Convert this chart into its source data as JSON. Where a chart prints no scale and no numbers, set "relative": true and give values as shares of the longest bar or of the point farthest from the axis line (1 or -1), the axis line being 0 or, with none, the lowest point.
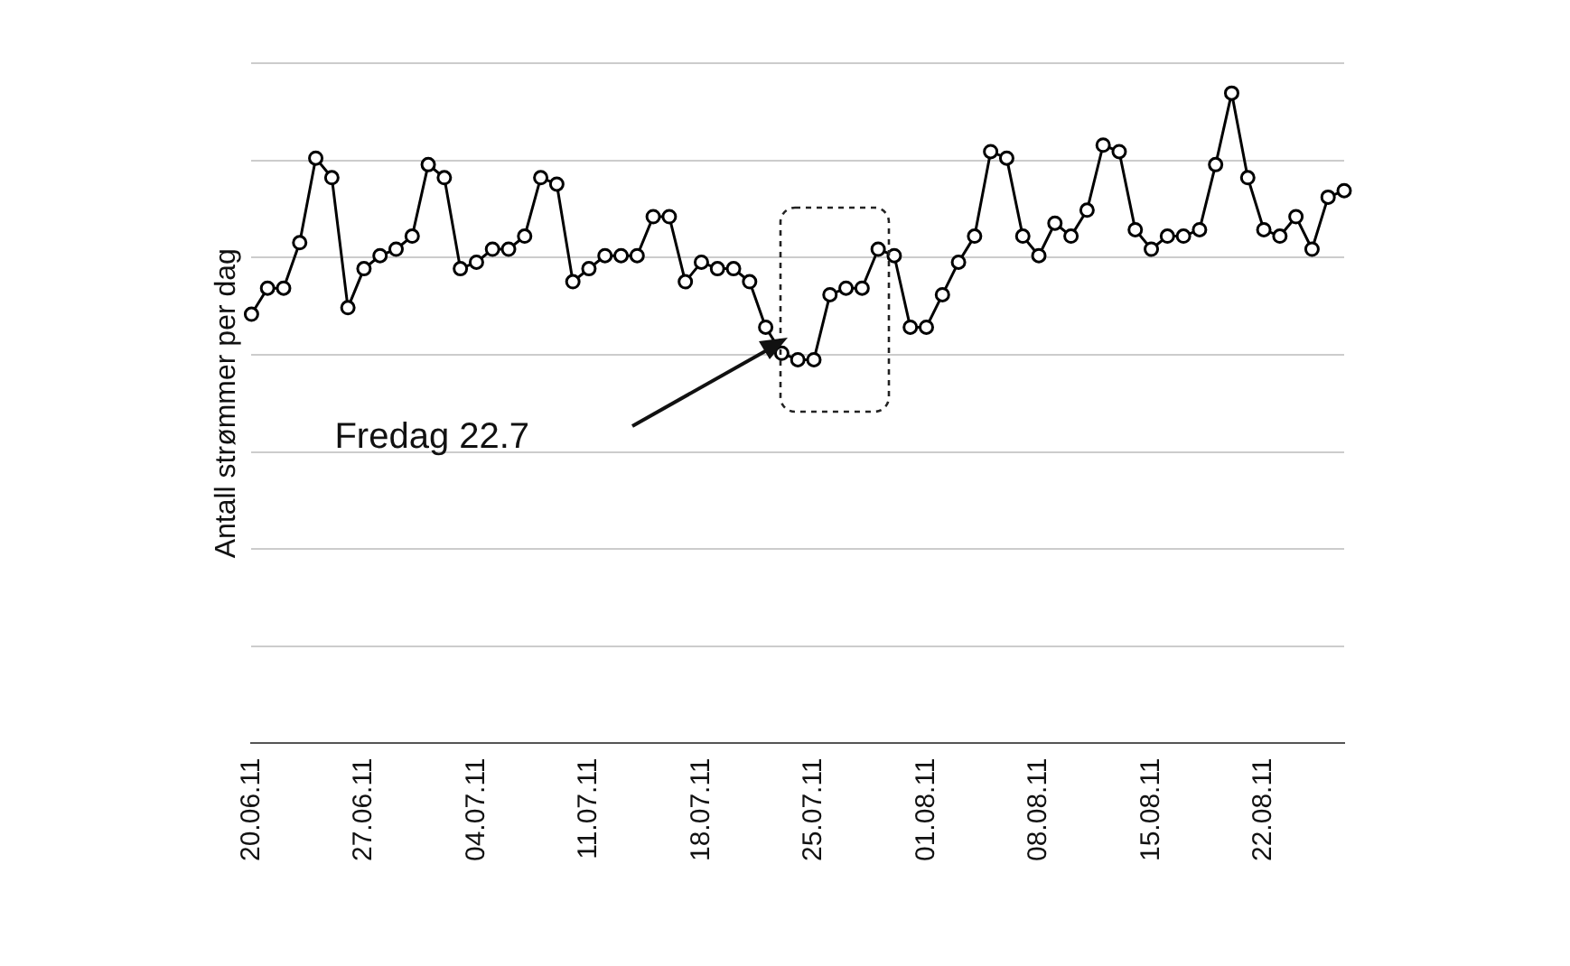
{
  "chart_data": {
    "type": "line",
    "relative": true,
    "ylabel": "Antall strømmer per dag",
    "color": "#000000",
    "marker": "circle",
    "grid": "y",
    "legend": false,
    "categories": [
      "20.06.11",
      null,
      null,
      null,
      null,
      null,
      null,
      "27.06.11",
      null,
      null,
      null,
      null,
      null,
      null,
      "04.07.11",
      null,
      null,
      null,
      null,
      null,
      null,
      "11.07.11",
      null,
      null,
      null,
      null,
      null,
      null,
      "18.07.11",
      null,
      null,
      null,
      null,
      null,
      null,
      "25.07.11",
      null,
      null,
      null,
      null,
      null,
      null,
      "01.08.11",
      null,
      null,
      null,
      null,
      null,
      null,
      "08.08.11",
      null,
      null,
      null,
      null,
      null,
      null,
      "15.08.11",
      null,
      null,
      null,
      null,
      null,
      null,
      "22.08.11",
      null,
      null,
      null,
      null,
      null
    ],
    "values": [
      0.66,
      0.7,
      0.7,
      0.77,
      0.9,
      0.87,
      0.67,
      0.73,
      0.75,
      0.76,
      0.78,
      0.89,
      0.87,
      0.73,
      0.74,
      0.76,
      0.76,
      0.78,
      0.87,
      0.86,
      0.71,
      0.73,
      0.75,
      0.75,
      0.75,
      0.81,
      0.81,
      0.71,
      0.74,
      0.73,
      0.73,
      0.71,
      0.64,
      0.6,
      0.59,
      0.59,
      0.69,
      0.7,
      0.7,
      0.76,
      0.75,
      0.64,
      0.64,
      0.69,
      0.74,
      0.78,
      0.91,
      0.9,
      0.78,
      0.75,
      0.8,
      0.78,
      0.82,
      0.92,
      0.91,
      0.79,
      0.76,
      0.78,
      0.78,
      0.79,
      0.89,
      1,
      0.87,
      0.79,
      0.78,
      0.81,
      0.76,
      0.84,
      0.85
    ],
    "annotations": [
      "Fredag 22.7"
    ]
  }
}
